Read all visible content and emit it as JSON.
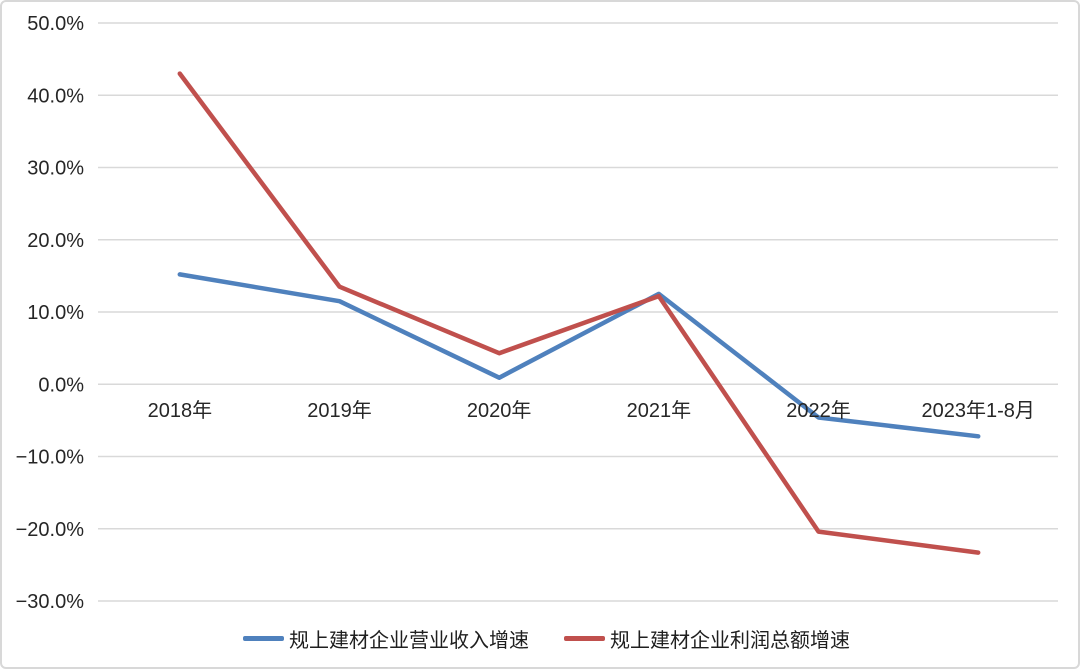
{
  "chart_data": {
    "type": "line",
    "categories": [
      "2018年",
      "2019年",
      "2020年",
      "2021年",
      "2022年",
      "2023年1-8月"
    ],
    "series": [
      {
        "name": "规上建材企业营业收入增速",
        "color": "#4F81BD",
        "values": [
          15.2,
          11.5,
          0.9,
          12.5,
          -4.6,
          -7.2
        ]
      },
      {
        "name": "规上建材企业利润总额增速",
        "color": "#C0504D",
        "values": [
          43.0,
          13.5,
          4.3,
          12.2,
          -20.4,
          -23.3
        ]
      }
    ],
    "title": "",
    "xlabel": "",
    "ylabel": "",
    "ylim": [
      -30,
      50
    ],
    "y_tick_step": 10,
    "y_tick_labels": [
      "50.0%",
      "40.0%",
      "30.0%",
      "20.0%",
      "10.0%",
      "0.0%",
      "−10.0%",
      "−20.0%",
      "−30.0%"
    ],
    "grid": "horizontal-only",
    "grid_color": "#d9d9d9",
    "axis_text_color": "#262626",
    "legend_position": "bottom",
    "frame_border_color": "#d8d8d8"
  }
}
